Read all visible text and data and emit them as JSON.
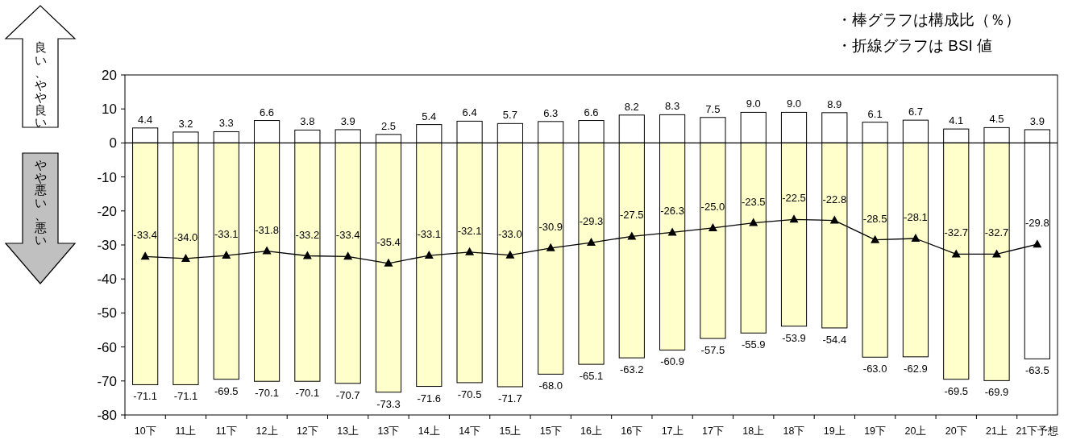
{
  "chart_data": {
    "type": "bar",
    "stacked": true,
    "grid": false,
    "categories": [
      "10下",
      "11上",
      "11下",
      "12上",
      "12下",
      "13上",
      "13下",
      "14上",
      "14下",
      "15上",
      "15下",
      "16上",
      "16下",
      "17上",
      "17下",
      "18上",
      "18下",
      "19上",
      "19下",
      "20上",
      "20下",
      "21上",
      "21下予想"
    ],
    "ylim": [
      -80,
      20
    ],
    "yticks": [
      -80,
      -70,
      -60,
      -50,
      -40,
      -30,
      -20,
      -10,
      0,
      10,
      20
    ],
    "ref_lines": [
      {
        "axis": "y",
        "value": 0,
        "color": "#000000"
      }
    ],
    "annotations": [
      "・棒グラフは構成比（％）",
      "・折線グラフは BSI 値",
      "良い、やや良い",
      "やや悪い、悪い"
    ],
    "series": [
      {
        "color": "#ffffff",
        "values": [
          4.4,
          3.2,
          3.3,
          6.6,
          3.8,
          3.9,
          2.5,
          5.4,
          6.4,
          5.7,
          6.3,
          6.6,
          8.2,
          8.3,
          7.5,
          9.0,
          9.0,
          8.9,
          6.1,
          6.7,
          4.1,
          4.5,
          3.9
        ],
        "value_labels": [
          "4.4",
          "3.2",
          "3.3",
          "6.6",
          "3.8",
          "3.9",
          "2.5",
          "5.4",
          "6.4",
          "5.7",
          "6.3",
          "6.6",
          "8.2",
          "8.3",
          "7.5",
          "9.0",
          "9.0",
          "8.9",
          "6.1",
          "6.7",
          "4.1",
          "4.5",
          "3.9"
        ]
      },
      {
        "colors": [
          "#ffffcc",
          "#ffffcc",
          "#ffffcc",
          "#ffffcc",
          "#ffffcc",
          "#ffffcc",
          "#ffffcc",
          "#ffffcc",
          "#ffffcc",
          "#ffffcc",
          "#ffffcc",
          "#ffffcc",
          "#ffffcc",
          "#ffffcc",
          "#ffffcc",
          "#ffffcc",
          "#ffffcc",
          "#ffffcc",
          "#ffffcc",
          "#ffffcc",
          "#ffffcc",
          "#ffffcc",
          "#ffffff"
        ],
        "values": [
          -71.1,
          -71.1,
          -69.5,
          -70.1,
          -70.1,
          -70.7,
          -73.3,
          -71.6,
          -70.5,
          -71.7,
          -68.0,
          -65.1,
          -63.2,
          -60.9,
          -57.5,
          -55.9,
          -53.9,
          -54.4,
          -63.0,
          -62.9,
          -69.5,
          -69.9,
          -63.5
        ],
        "value_labels": [
          "-71.1",
          "-71.1",
          "-69.5",
          "-70.1",
          "-70.1",
          "-70.7",
          "-73.3",
          "-71.6",
          "-70.5",
          "-71.7",
          "-68.0",
          "-65.1",
          "-63.2",
          "-60.9",
          "-57.5",
          "-55.9",
          "-53.9",
          "-54.4",
          "-63.0",
          "-62.9",
          "-69.5",
          "-69.9",
          "-63.5"
        ]
      },
      {
        "type": "line",
        "color": "#000000",
        "marker": "triangle",
        "line_style": "solid",
        "values": [
          -33.4,
          -34.0,
          -33.1,
          -31.8,
          -33.2,
          -33.4,
          -35.4,
          -33.1,
          -32.1,
          -33.0,
          -30.9,
          -29.3,
          -27.5,
          -26.3,
          -25.0,
          -23.5,
          -22.5,
          -22.8,
          -28.5,
          -28.1,
          -32.7,
          -32.7,
          -29.8
        ],
        "value_labels": [
          "-33.4",
          "-34.0",
          "-33.1",
          "-31.8",
          "-33.2",
          "-33.4",
          "-35.4",
          "-33.1",
          "-32.1",
          "-33.0",
          "-30.9",
          "-29.3",
          "-27.5",
          "-26.3",
          "-25.0",
          "-23.5",
          "-22.5",
          "-22.8",
          "-28.5",
          "-28.1",
          "-32.7",
          "-32.7",
          "-29.8"
        ]
      }
    ]
  }
}
